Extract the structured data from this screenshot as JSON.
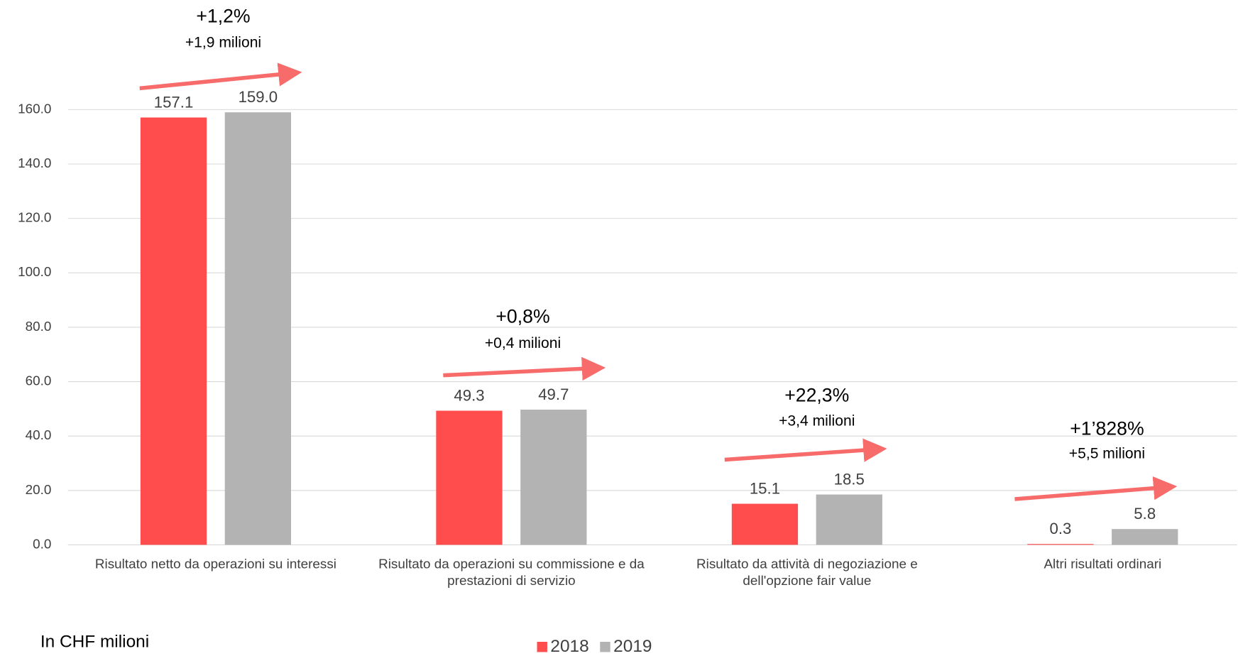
{
  "chart_data": {
    "type": "bar",
    "categories": [
      "Risultato netto da operazioni su interessi",
      "Risultato da operazioni su commissione e da prestazioni di servizio",
      "Risultato da attività di negoziazione e dell'opzione fair value",
      "Altri risultati ordinari"
    ],
    "series": [
      {
        "name": "2018",
        "color": "#ff4d4d",
        "values": [
          157.1,
          49.3,
          15.1,
          0.3
        ],
        "value_labels": [
          "157.1",
          "49.3",
          "15.1",
          "0.3"
        ]
      },
      {
        "name": "2019",
        "color": "#b3b3b3",
        "values": [
          159.0,
          49.7,
          18.5,
          5.8
        ],
        "value_labels": [
          "159.0",
          "49.7",
          "18.5",
          "5.8"
        ]
      }
    ],
    "ylim": [
      0,
      160
    ],
    "yticks": [
      {
        "value": 0,
        "label": "0.0"
      },
      {
        "value": 20,
        "label": "20.0"
      },
      {
        "value": 40,
        "label": "40.0"
      },
      {
        "value": 60,
        "label": "60.0"
      },
      {
        "value": 80,
        "label": "80.0"
      },
      {
        "value": 100,
        "label": "100.0"
      },
      {
        "value": 120,
        "label": "120.0"
      },
      {
        "value": 140,
        "label": "140.0"
      },
      {
        "value": 160,
        "label": "160.0"
      }
    ],
    "grid": true,
    "legend": "bottom",
    "annotations": [
      {
        "text": "+1,2%",
        "subtext": "+1,9 milioni"
      },
      {
        "text": "+0,8%",
        "subtext": "+0,4 milioni"
      },
      {
        "text": "+22,3%",
        "subtext": "+3,4 milioni"
      },
      {
        "text": "+1’828%",
        "subtext": "+5,5 milioni"
      }
    ],
    "note": "In CHF milioni"
  }
}
